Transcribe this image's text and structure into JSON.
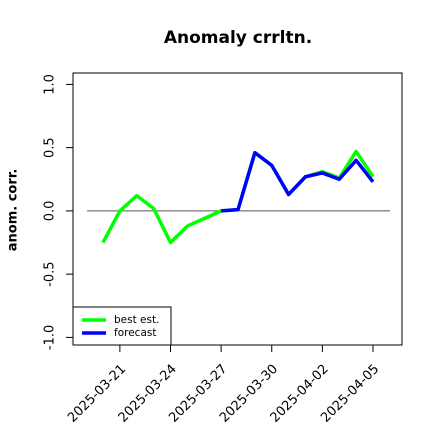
{
  "chart_data": {
    "type": "line",
    "title": "Anomaly crrltn.",
    "y_label": "anom. corr.",
    "x": [
      "2025-03-20",
      "2025-03-21",
      "2025-03-22",
      "2025-03-23",
      "2025-03-24",
      "2025-03-25",
      "2025-03-26",
      "2025-03-27",
      "2025-03-28",
      "2025-03-29",
      "2025-03-30",
      "2025-03-31",
      "2025-04-01",
      "2025-04-02",
      "2025-04-03",
      "2025-04-04",
      "2025-04-05"
    ],
    "series": [
      {
        "name": "best est.",
        "color": "#00ff00",
        "values": [
          -0.25,
          0.0,
          0.12,
          0.02,
          -0.25,
          -0.12,
          -0.06,
          0.0,
          0.01,
          0.46,
          0.36,
          0.13,
          0.27,
          0.31,
          0.26,
          0.47,
          0.27
        ]
      },
      {
        "name": "forecast",
        "color": "#0000ff",
        "values": [
          null,
          null,
          null,
          null,
          null,
          null,
          null,
          0.0,
          0.01,
          0.46,
          0.36,
          0.13,
          0.27,
          0.3,
          0.25,
          0.4,
          0.23
        ]
      }
    ],
    "xticks": [
      "2025-03-21",
      "2025-03-24",
      "2025-03-27",
      "2025-03-30",
      "2025-04-02",
      "2025-04-05"
    ],
    "xtick_colors": [
      "#000000",
      "#000000",
      "#228b22",
      "#000000",
      "#000000",
      "#000000"
    ],
    "ylim": [
      -1.06,
      1.09
    ],
    "yticks": [
      {
        "value": -1,
        "label": "-1.0"
      },
      -0.5,
      {
        "value": 0,
        "label": "0.0"
      },
      0.5,
      {
        "value": 1,
        "label": "1.0"
      }
    ],
    "reference_line": 0,
    "legend": "bottom-left"
  }
}
